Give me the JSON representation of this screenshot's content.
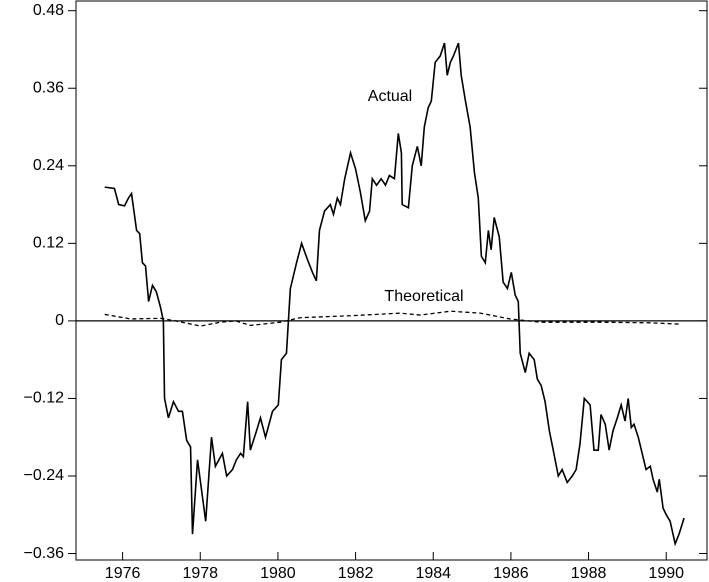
{
  "chart_data": {
    "type": "line",
    "annotations": [
      "Actual",
      "Theoretical"
    ],
    "series": [
      {
        "name": "Actual",
        "color": "#000000",
        "x": [
          1975.54,
          1975.79,
          1975.9,
          1976.05,
          1976.15,
          1976.23,
          1976.36,
          1976.44,
          1976.51,
          1976.59,
          1976.67,
          1976.77,
          1976.87,
          1976.98,
          1977.05,
          1977.08,
          1977.18,
          1977.31,
          1977.44,
          1977.54,
          1977.65,
          1977.75,
          1977.8,
          1977.93,
          1978.14,
          1978.29,
          1978.39,
          1978.57,
          1978.68,
          1978.83,
          1978.93,
          1979.04,
          1979.11,
          1979.22,
          1979.29,
          1979.45,
          1979.55,
          1979.68,
          1979.86,
          1980.01,
          1980.09,
          1980.22,
          1980.32,
          1980.48,
          1980.61,
          1980.76,
          1980.89,
          1980.99,
          1981.07,
          1981.2,
          1981.35,
          1981.43,
          1981.53,
          1981.61,
          1981.72,
          1981.87,
          1982.0,
          1982.12,
          1982.25,
          1982.36,
          1982.43,
          1982.54,
          1982.66,
          1982.77,
          1982.87,
          1983.0,
          1983.1,
          1983.18,
          1983.2,
          1983.36,
          1983.46,
          1983.59,
          1983.69,
          1983.77,
          1983.87,
          1983.95,
          1984.05,
          1984.18,
          1984.29,
          1984.36,
          1984.44,
          1984.52,
          1984.65,
          1984.72,
          1984.83,
          1984.95,
          1985.06,
          1985.16,
          1985.24,
          1985.34,
          1985.42,
          1985.49,
          1985.57,
          1985.7,
          1985.8,
          1985.91,
          1986.01,
          1986.11,
          1986.19,
          1986.24,
          1986.37,
          1986.47,
          1986.6,
          1986.68,
          1986.78,
          1986.88,
          1986.99,
          1987.09,
          1987.22,
          1987.32,
          1987.45,
          1987.58,
          1987.68,
          1987.78,
          1987.89,
          1988.04,
          1988.14,
          1988.25,
          1988.32,
          1988.43,
          1988.53,
          1988.63,
          1988.74,
          1988.84,
          1988.94,
          1989.02,
          1989.1,
          1989.17,
          1989.28,
          1989.38,
          1989.48,
          1989.59,
          1989.66,
          1989.77,
          1989.82,
          1989.92,
          1990.0,
          1990.1,
          1990.23,
          1990.33,
          1990.46
        ],
        "values": [
          0.207,
          0.205,
          0.18,
          0.178,
          0.19,
          0.197,
          0.14,
          0.135,
          0.09,
          0.085,
          0.03,
          0.055,
          0.045,
          0.02,
          0.0,
          -0.12,
          -0.15,
          -0.125,
          -0.14,
          -0.14,
          -0.185,
          -0.195,
          -0.33,
          -0.215,
          -0.31,
          -0.18,
          -0.225,
          -0.205,
          -0.24,
          -0.23,
          -0.215,
          -0.205,
          -0.21,
          -0.125,
          -0.2,
          -0.17,
          -0.15,
          -0.18,
          -0.14,
          -0.13,
          -0.06,
          -0.05,
          0.05,
          0.09,
          0.12,
          0.095,
          0.075,
          0.062,
          0.14,
          0.17,
          0.18,
          0.165,
          0.19,
          0.18,
          0.22,
          0.26,
          0.235,
          0.2,
          0.155,
          0.17,
          0.22,
          0.21,
          0.22,
          0.21,
          0.225,
          0.22,
          0.29,
          0.26,
          0.18,
          0.175,
          0.24,
          0.27,
          0.24,
          0.3,
          0.33,
          0.34,
          0.4,
          0.41,
          0.43,
          0.38,
          0.4,
          0.41,
          0.43,
          0.38,
          0.34,
          0.3,
          0.23,
          0.19,
          0.1,
          0.09,
          0.14,
          0.11,
          0.16,
          0.13,
          0.06,
          0.05,
          0.075,
          0.04,
          0.03,
          -0.05,
          -0.08,
          -0.05,
          -0.06,
          -0.09,
          -0.1,
          -0.125,
          -0.17,
          -0.2,
          -0.24,
          -0.23,
          -0.25,
          -0.24,
          -0.23,
          -0.19,
          -0.12,
          -0.13,
          -0.2,
          -0.2,
          -0.145,
          -0.16,
          -0.2,
          -0.17,
          -0.15,
          -0.13,
          -0.155,
          -0.12,
          -0.165,
          -0.16,
          -0.18,
          -0.205,
          -0.23,
          -0.225,
          -0.245,
          -0.265,
          -0.245,
          -0.29,
          -0.3,
          -0.31,
          -0.345,
          -0.33,
          -0.305
        ]
      },
      {
        "name": "Theoretical",
        "color": "#000000",
        "dashed": true,
        "x": [
          1975.54,
          1976.21,
          1976.98,
          1977.36,
          1978.01,
          1978.52,
          1978.91,
          1979.29,
          1980.07,
          1980.58,
          1981.87,
          1983.15,
          1983.67,
          1984.44,
          1985.21,
          1985.98,
          1986.76,
          1988.3,
          1989.59,
          1990.36
        ],
        "values": [
          0.01,
          0.003,
          0.004,
          0.0,
          -0.008,
          -0.002,
          0.0,
          -0.007,
          -0.002,
          0.005,
          0.008,
          0.012,
          0.009,
          0.015,
          0.012,
          0.003,
          -0.002,
          -0.002,
          -0.003,
          -0.005
        ]
      }
    ],
    "xlim": [
      1974.8,
      1991.05
    ],
    "xticks": [
      1976,
      1978,
      1980,
      1982,
      1984,
      1986,
      1988,
      1990
    ],
    "ylim": [
      -0.37,
      0.495
    ],
    "yticks": [
      {
        "value": -0.36,
        "label": "−0.36"
      },
      {
        "value": -0.24,
        "label": "−0.24"
      },
      {
        "value": -0.12,
        "label": "−0.12"
      },
      0,
      0.12,
      0.24,
      0.36,
      0.48
    ]
  }
}
